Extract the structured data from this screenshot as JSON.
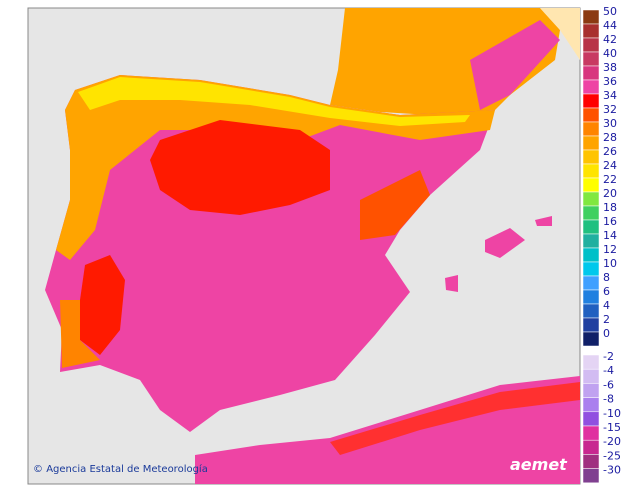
{
  "credit": "Agencia Estatal de Meteorología",
  "logo": "aemet",
  "legend": {
    "items": [
      {
        "value": 50,
        "color": "#8b3a12"
      },
      {
        "value": 44,
        "color": "#a8302e"
      },
      {
        "value": 42,
        "color": "#b83448"
      },
      {
        "value": 40,
        "color": "#c83a62"
      },
      {
        "value": 38,
        "color": "#d8367e"
      },
      {
        "value": 36,
        "color": "#ee44a4"
      },
      {
        "value": 34,
        "color": "#ff0000"
      },
      {
        "value": 32,
        "color": "#ff5200"
      },
      {
        "value": 30,
        "color": "#ff8400"
      },
      {
        "value": 28,
        "color": "#ffa400"
      },
      {
        "value": 26,
        "color": "#ffc400"
      },
      {
        "value": 24,
        "color": "#ffe400"
      },
      {
        "value": 22,
        "color": "#ffff00"
      },
      {
        "value": 20,
        "color": "#80e840"
      },
      {
        "value": 18,
        "color": "#40d060"
      },
      {
        "value": 16,
        "color": "#20c080"
      },
      {
        "value": 14,
        "color": "#20b0a0"
      },
      {
        "value": 12,
        "color": "#00c0c8"
      },
      {
        "value": 10,
        "color": "#00c8ec"
      },
      {
        "value": 8,
        "color": "#40a0ff"
      },
      {
        "value": 6,
        "color": "#2080e0"
      },
      {
        "value": 4,
        "color": "#2060c0"
      },
      {
        "value": 2,
        "color": "#2040a0"
      },
      {
        "value": 0,
        "color": "#102068"
      }
    ],
    "negative_items": [
      {
        "value": -2,
        "color": "#e4d4f4"
      },
      {
        "value": -4,
        "color": "#d2bcf2"
      },
      {
        "value": -6,
        "color": "#c0a2f0"
      },
      {
        "value": -8,
        "color": "#aa80ee"
      },
      {
        "value": -10,
        "color": "#9050e0"
      },
      {
        "value": -15,
        "color": "#e030a0"
      },
      {
        "value": -20,
        "color": "#c82890"
      },
      {
        "value": -25,
        "color": "#a03080"
      },
      {
        "value": -30,
        "color": "#804090"
      }
    ]
  }
}
